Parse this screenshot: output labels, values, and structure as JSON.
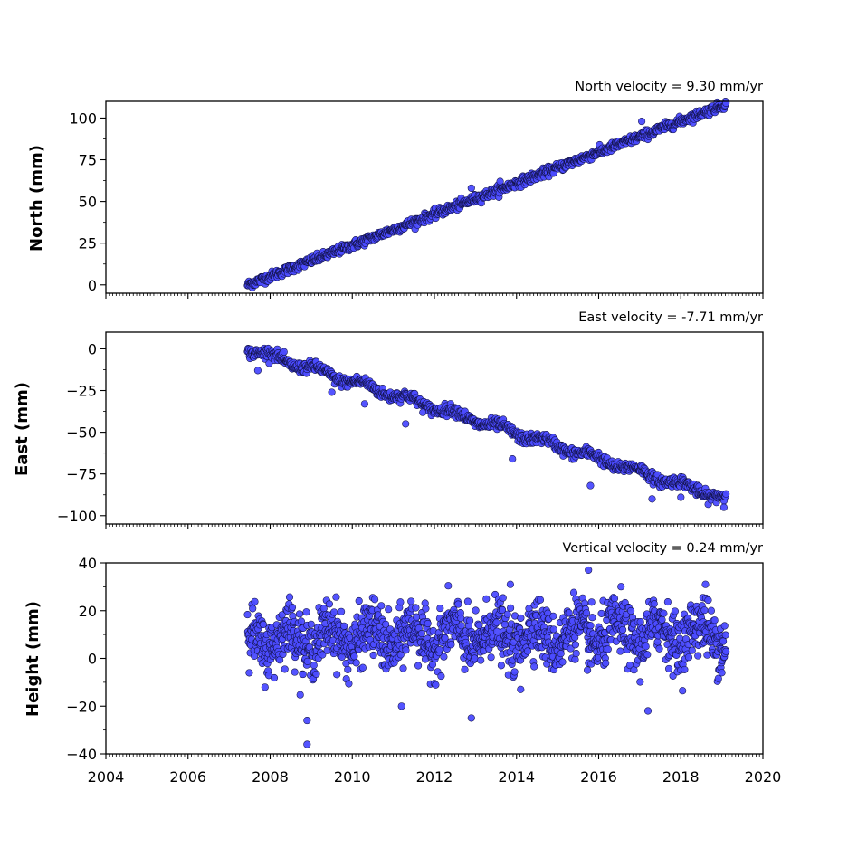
{
  "chart_data": [
    {
      "type": "scatter",
      "title": "North velocity = 9.30 mm/yr",
      "xlabel": "",
      "ylabel": "North (mm)",
      "xlim": [
        2004,
        2020
      ],
      "ylim": [
        -5,
        110
      ],
      "yticks": [
        0,
        25,
        50,
        75,
        100
      ],
      "ytick_labels": [
        "0",
        "25",
        "50",
        "75",
        "100"
      ],
      "show_xtick_labels": false,
      "point_color": "#4b4bff",
      "trend": {
        "start_year": 2007.45,
        "start_value": 0,
        "velocity": 9.3
      },
      "noise_sd": 1.3,
      "outliers": [
        {
          "x": 2012.9,
          "y": 58
        },
        {
          "x": 2017.05,
          "y": 98
        },
        {
          "x": 2013.6,
          "y": 62
        }
      ],
      "x_range": [
        2007.45,
        2019.1
      ],
      "points": []
    },
    {
      "type": "scatter",
      "title": "East velocity = -7.71 mm/yr",
      "xlabel": "",
      "ylabel": "East (mm)",
      "xlim": [
        2004,
        2020
      ],
      "ylim": [
        -105,
        10
      ],
      "yticks": [
        0,
        -25,
        -50,
        -75,
        -100
      ],
      "ytick_labels": [
        "0",
        "−25",
        "−50",
        "−75",
        "−100"
      ],
      "show_xtick_labels": false,
      "point_color": "#4b4bff",
      "trend": {
        "start_year": 2007.45,
        "start_value": 0,
        "velocity": -7.71
      },
      "noise_sd": 1.6,
      "outliers": [
        {
          "x": 2007.7,
          "y": -13
        },
        {
          "x": 2009.5,
          "y": -26
        },
        {
          "x": 2010.3,
          "y": -33
        },
        {
          "x": 2011.3,
          "y": -45
        },
        {
          "x": 2013.9,
          "y": -66
        },
        {
          "x": 2015.8,
          "y": -82
        },
        {
          "x": 2017.3,
          "y": -90
        },
        {
          "x": 2018.0,
          "y": -89
        },
        {
          "x": 2019.05,
          "y": -95
        }
      ],
      "x_range": [
        2007.45,
        2019.1
      ],
      "points": []
    },
    {
      "type": "scatter",
      "title": "Vertical velocity = 0.24 mm/yr",
      "xlabel": "",
      "ylabel": "Height (mm)",
      "xlim": [
        2004,
        2020
      ],
      "ylim": [
        -40,
        40
      ],
      "yticks": [
        -40,
        -20,
        0,
        20,
        40
      ],
      "ytick_labels": [
        "−40",
        "−20",
        "0",
        "20",
        "40"
      ],
      "xticks": [
        2004,
        2006,
        2008,
        2010,
        2012,
        2014,
        2016,
        2018,
        2020
      ],
      "xtick_labels": [
        "2004",
        "2006",
        "2008",
        "2010",
        "2012",
        "2014",
        "2016",
        "2018",
        "2020"
      ],
      "show_xtick_labels": true,
      "point_color": "#4b4bff",
      "trend": {
        "start_year": 2007.45,
        "start_value": 8,
        "velocity": 0.24
      },
      "noise_sd": 6,
      "seasonal_amplitude": 5,
      "outliers": [
        {
          "x": 2008.9,
          "y": -26
        },
        {
          "x": 2008.9,
          "y": -36
        },
        {
          "x": 2012.9,
          "y": -25
        },
        {
          "x": 2014.1,
          "y": -13
        },
        {
          "x": 2011.2,
          "y": -20
        },
        {
          "x": 2017.2,
          "y": -22
        },
        {
          "x": 2015.75,
          "y": 37
        },
        {
          "x": 2013.85,
          "y": 31
        },
        {
          "x": 2018.6,
          "y": 31
        },
        {
          "x": 2019.0,
          "y": -6
        }
      ],
      "x_range": [
        2007.45,
        2019.1
      ],
      "points": []
    }
  ]
}
